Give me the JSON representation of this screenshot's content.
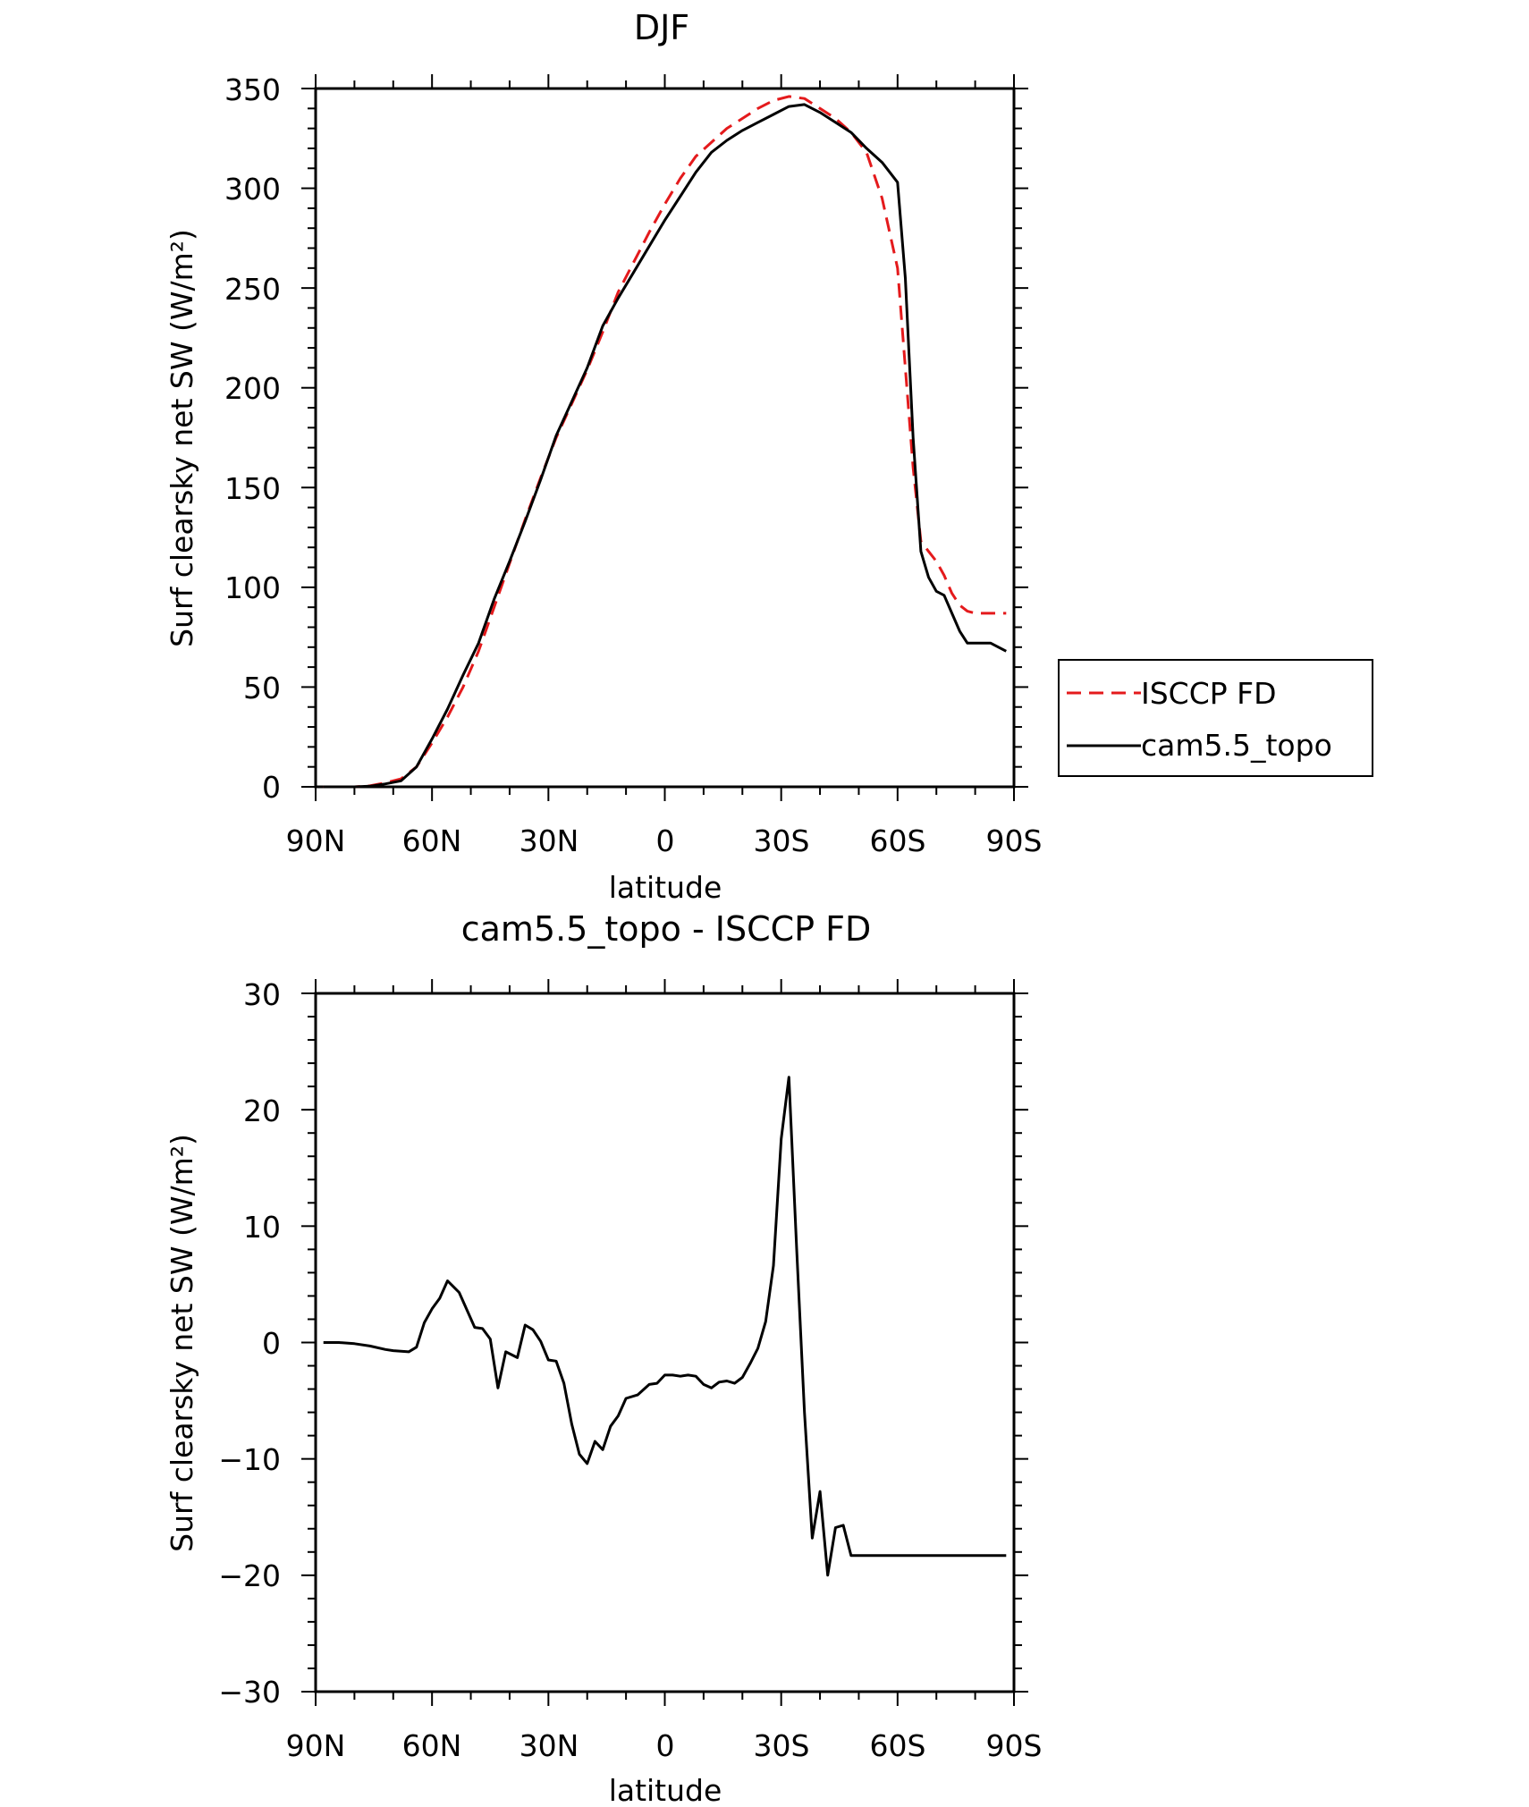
{
  "colors": {
    "obs": "#e41a1c",
    "model": "#000000"
  },
  "chart_data": [
    {
      "type": "line",
      "title": "DJF",
      "xlabel": "latitude",
      "ylabel": "Surf clearsky net SW (W/m²)",
      "x_tick_labels": [
        "90N",
        "60N",
        "30N",
        "0",
        "30S",
        "60S",
        "90S"
      ],
      "y_tick_labels": [
        "0",
        "50",
        "100",
        "150",
        "200",
        "250",
        "300",
        "350"
      ],
      "ylim": [
        0,
        350
      ],
      "xlim": [
        -90,
        90
      ],
      "legend_position": "right",
      "series": [
        {
          "name": "ISCCP FD",
          "style": "dashed",
          "x": [
            -88,
            -84,
            -80,
            -76,
            -72,
            -68,
            -64,
            -60,
            -56,
            -52,
            -48,
            -44,
            -40,
            -36,
            -32,
            -28,
            -24,
            -20,
            -16,
            -12,
            -8,
            -4,
            0,
            4,
            8,
            12,
            16,
            20,
            24,
            28,
            32,
            36,
            40,
            44,
            48,
            52,
            56,
            60,
            62,
            64,
            66,
            68,
            70,
            72,
            74,
            76,
            78,
            80,
            82,
            84,
            86,
            88
          ],
          "values": [
            0,
            0,
            0,
            0.5,
            2,
            4,
            10,
            22,
            35,
            50,
            68,
            90,
            112,
            134,
            155,
            175,
            192,
            209,
            228,
            248,
            263,
            278,
            292,
            305,
            316,
            323,
            330,
            335,
            340,
            344,
            346,
            345,
            340,
            335,
            328,
            318,
            295,
            260,
            210,
            160,
            123,
            118,
            113,
            106,
            97,
            91,
            88,
            87,
            87,
            87,
            87,
            87
          ]
        },
        {
          "name": "cam5.5_topo",
          "style": "solid",
          "x": [
            -88,
            -84,
            -80,
            -76,
            -72,
            -68,
            -64,
            -60,
            -56,
            -52,
            -48,
            -44,
            -40,
            -36,
            -32,
            -28,
            -24,
            -20,
            -16,
            -12,
            -8,
            -4,
            0,
            4,
            8,
            12,
            16,
            20,
            24,
            28,
            32,
            36,
            40,
            44,
            48,
            52,
            56,
            60,
            62,
            64,
            66,
            68,
            70,
            72,
            74,
            76,
            78,
            80,
            82,
            84,
            86,
            88
          ],
          "values": [
            0,
            0,
            0,
            0.3,
            1.5,
            3,
            10,
            24,
            39,
            56,
            72,
            94,
            113,
            133,
            154,
            176,
            193,
            210,
            231,
            245,
            258,
            271,
            284,
            296,
            308,
            318,
            324,
            329,
            333,
            337,
            341,
            342,
            338,
            333,
            328,
            320,
            313,
            303,
            255,
            175,
            118,
            105,
            98,
            96,
            87,
            78,
            72,
            72,
            72,
            72,
            70,
            68
          ]
        }
      ]
    },
    {
      "type": "line",
      "title": "cam5.5_topo - ISCCP FD",
      "xlabel": "latitude",
      "ylabel": "Surf clearsky net SW (W/m²)",
      "x_tick_labels": [
        "90N",
        "60N",
        "30N",
        "0",
        "30S",
        "60S",
        "90S"
      ],
      "y_tick_labels": [
        "−30",
        "−20",
        "−10",
        "0",
        "10",
        "20",
        "30"
      ],
      "ylim": [
        -30,
        30
      ],
      "xlim": [
        -90,
        90
      ],
      "series": [
        {
          "style": "solid",
          "x": [
            -88,
            -84,
            -80,
            -76,
            -72,
            -70,
            -66,
            -64,
            -62,
            -60,
            -58,
            -56,
            -53,
            -49,
            -47,
            -45,
            -43,
            -41,
            -38,
            -36,
            -34,
            -32,
            -30,
            -28,
            -26,
            -24,
            -22,
            -20,
            -18,
            -16,
            -14,
            -12,
            -10,
            -7,
            -4,
            -2,
            0,
            2,
            4,
            6,
            8,
            10,
            12,
            14,
            16,
            18,
            20,
            22,
            24,
            26,
            28,
            30,
            32,
            34,
            36,
            38,
            40,
            42,
            44,
            46,
            48,
            50,
            52,
            54,
            56,
            58,
            60,
            62,
            64,
            66,
            68,
            72,
            74,
            76,
            78,
            80,
            82,
            84,
            86,
            88
          ],
          "values": [
            0,
            0,
            -0.1,
            -0.3,
            -0.6,
            -0.7,
            -0.8,
            -0.4,
            1.7,
            2.9,
            3.8,
            5.3,
            4.3,
            1.3,
            1.2,
            0.3,
            -3.9,
            -0.8,
            -1.3,
            1.5,
            1.1,
            0.1,
            -1.5,
            -1.6,
            -3.5,
            -7.0,
            -9.6,
            -10.4,
            -8.5,
            -9.2,
            -7.2,
            -6.3,
            -4.8,
            -4.5,
            -3.6,
            -3.5,
            -2.8,
            -2.8,
            -2.9,
            -2.8,
            -2.9,
            -3.6,
            -3.9,
            -3.4,
            -3.3,
            -3.5,
            -3.0,
            -1.8,
            -0.5,
            1.8,
            6.6,
            17.5,
            22.8,
            8.0,
            -6.0,
            -16.8,
            -12.8,
            -20.0,
            -15.9,
            -15.7,
            -18.3,
            -18.3,
            -18.3,
            -18.3,
            -18.3,
            -18.3,
            -18.3,
            -18.3,
            -18.3,
            -18.3,
            -18.3,
            -18.3,
            -18.3,
            -18.3,
            -18.3,
            -18.3,
            -18.3,
            -18.3,
            -18.3,
            -18.3
          ]
        }
      ]
    }
  ]
}
